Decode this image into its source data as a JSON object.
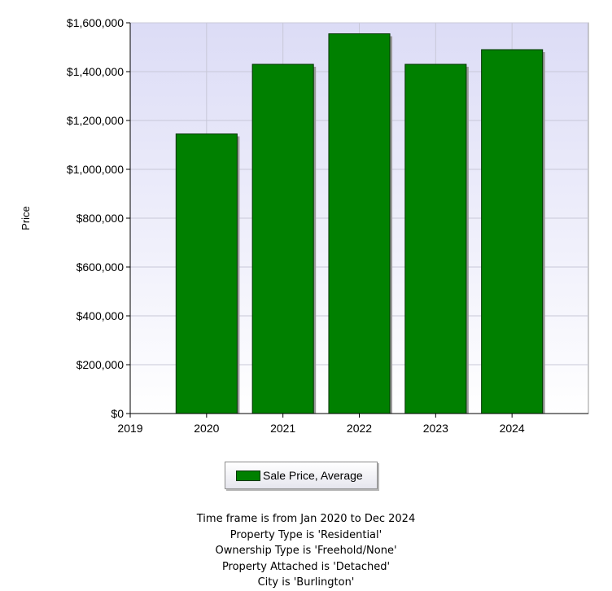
{
  "chart_data": {
    "type": "bar",
    "title": "",
    "xlabel": "",
    "ylabel": "Price",
    "x_ticks": [
      "2019",
      "2020",
      "2021",
      "2022",
      "2023",
      "2024"
    ],
    "categories": [
      "2020",
      "2021",
      "2022",
      "2023",
      "2024"
    ],
    "series": [
      {
        "name": "Sale Price, Average",
        "color": "#008000",
        "values": [
          1145000,
          1430000,
          1555000,
          1430000,
          1490000
        ]
      }
    ],
    "ylim": [
      0,
      1600000
    ],
    "y_ticks": [
      0,
      200000,
      400000,
      600000,
      800000,
      1000000,
      1200000,
      1400000,
      1600000
    ],
    "y_tick_labels": [
      "$0",
      "$200,000",
      "$400,000",
      "$600,000",
      "$800,000",
      "$1,000,000",
      "$1,200,000",
      "$1,400,000",
      "$1,600,000"
    ],
    "grid": true,
    "legend": "bottom",
    "plot_background": "#e6e6f8"
  },
  "legend": {
    "label": "Sale Price, Average"
  },
  "filters": [
    "Time frame is from Jan 2020 to Dec 2024",
    "Property Type is 'Residential'",
    "Ownership Type is 'Freehold/None'",
    "Property Attached is 'Detached'",
    "City is 'Burlington'"
  ]
}
